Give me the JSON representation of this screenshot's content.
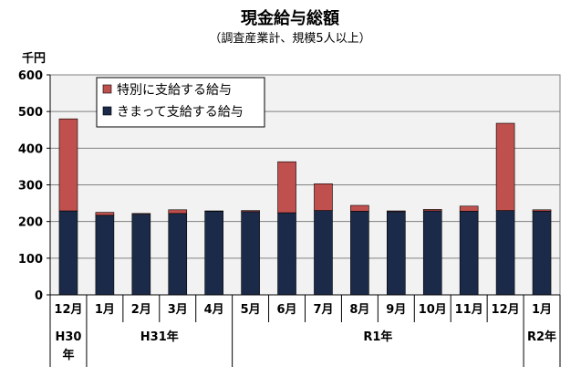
{
  "chart_data": {
    "type": "bar",
    "stacked": true,
    "title": "現金給与総額",
    "subtitle": "（調査産業計、規模5人以上）",
    "y_unit": "千円",
    "ylim": [
      0,
      600
    ],
    "yticks": [
      0,
      100,
      200,
      300,
      400,
      500,
      600
    ],
    "grid": true,
    "legend_position": "top-left",
    "categories": [
      "12月",
      "1月",
      "2月",
      "3月",
      "4月",
      "5月",
      "6月",
      "7月",
      "8月",
      "9月",
      "10月",
      "11月",
      "12月",
      "1月"
    ],
    "year_groups": [
      {
        "label": "H30\n年",
        "start": 0,
        "end": 0
      },
      {
        "label": "H31年",
        "start": 1,
        "end": 4
      },
      {
        "label": "R1年",
        "start": 5,
        "end": 12
      },
      {
        "label": "R2年",
        "start": 13,
        "end": 13
      }
    ],
    "series": [
      {
        "name": "きまって支給する給与",
        "color": "#1b2a48",
        "values": [
          229,
          217,
          220,
          222,
          228,
          227,
          224,
          230,
          228,
          227,
          229,
          228,
          230,
          228
        ]
      },
      {
        "name": "特別に支給する給与",
        "color": "#c0504d",
        "values": [
          251,
          8,
          2,
          10,
          1,
          3,
          139,
          73,
          16,
          2,
          4,
          14,
          238,
          4
        ]
      }
    ]
  }
}
